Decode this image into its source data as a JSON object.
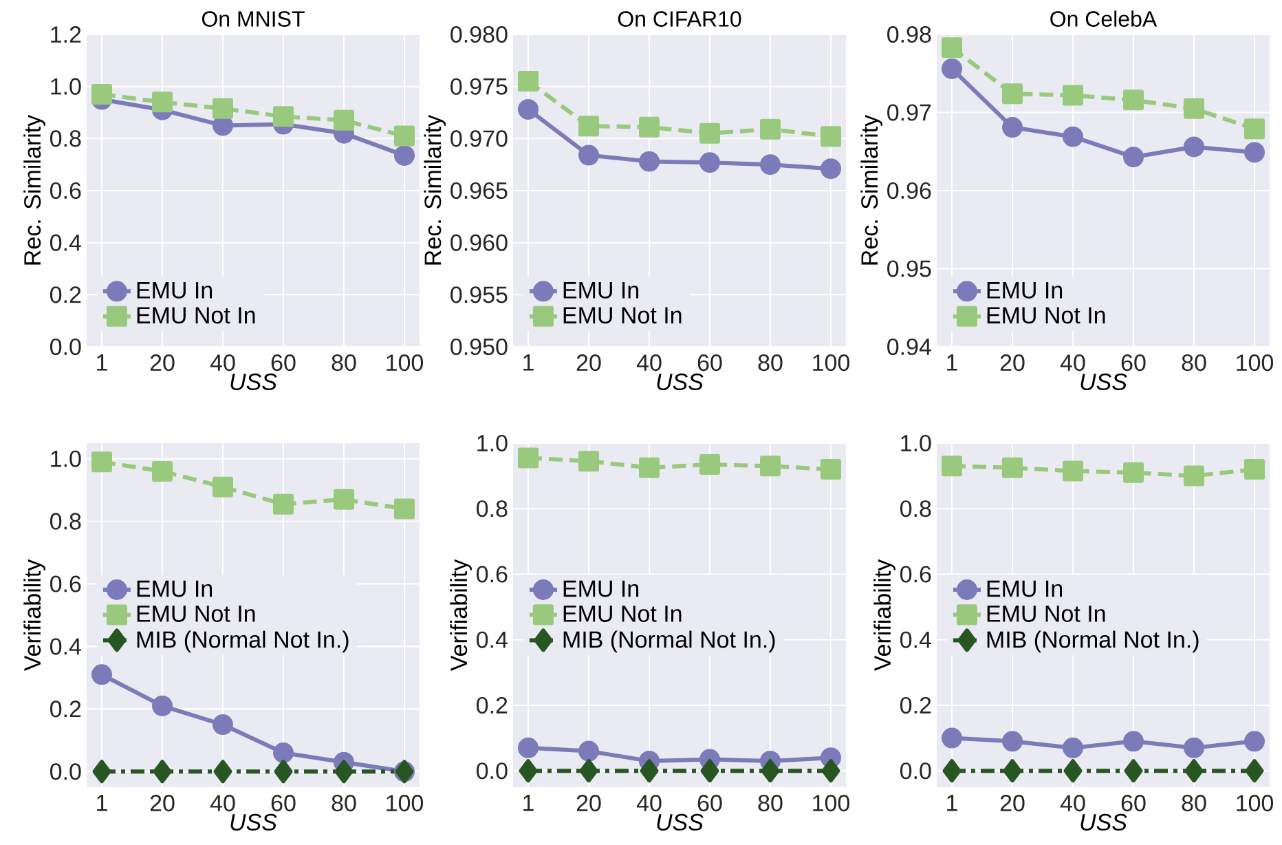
{
  "chart_data": [
    {
      "type": "line",
      "title": "On MNIST",
      "xlabel": "USS",
      "ylabel": "Rec. Similarity",
      "categories": [
        "1",
        "20",
        "40",
        "60",
        "80",
        "100"
      ],
      "ylim": [
        0,
        1.2
      ],
      "yticks": [
        {
          "value": 0,
          "label": "0.0"
        },
        {
          "value": 0.2,
          "label": "0.2"
        },
        {
          "value": 0.4,
          "label": "0.4"
        },
        {
          "value": 0.6,
          "label": "0.6"
        },
        {
          "value": 0.8,
          "label": "0.8"
        },
        {
          "value": 1.0,
          "label": "1.0"
        },
        {
          "value": 1.2,
          "label": "1.2"
        }
      ],
      "grid": true,
      "legend": "bottom left",
      "series": [
        {
          "name": "EMU In",
          "color": "#7b7bb9",
          "marker": "circle",
          "line_style": "solid",
          "values": [
            0.95,
            0.91,
            0.85,
            0.855,
            0.82,
            0.735
          ]
        },
        {
          "name": "EMU Not In",
          "color": "#98c97d",
          "marker": "square",
          "line_style": "dashed",
          "values": [
            0.97,
            0.94,
            0.915,
            0.885,
            0.87,
            0.81
          ]
        }
      ]
    },
    {
      "type": "line",
      "title": "On CIFAR10",
      "xlabel": "USS",
      "ylabel": "Rec. Similarity",
      "categories": [
        "1",
        "20",
        "40",
        "60",
        "80",
        "100"
      ],
      "ylim": [
        0.95,
        0.98
      ],
      "yticks": [
        {
          "value": 0.95,
          "label": "0.950"
        },
        {
          "value": 0.955,
          "label": "0.955"
        },
        {
          "value": 0.96,
          "label": "0.960"
        },
        {
          "value": 0.965,
          "label": "0.965"
        },
        {
          "value": 0.97,
          "label": "0.970"
        },
        {
          "value": 0.975,
          "label": "0.975"
        },
        {
          "value": 0.98,
          "label": "0.980"
        }
      ],
      "grid": true,
      "legend": "bottom left",
      "series": [
        {
          "name": "EMU In",
          "color": "#7b7bb9",
          "marker": "circle",
          "line_style": "solid",
          "values": [
            0.9728,
            0.9684,
            0.9678,
            0.9677,
            0.9675,
            0.9671
          ]
        },
        {
          "name": "EMU Not In",
          "color": "#98c97d",
          "marker": "square",
          "line_style": "dashed",
          "values": [
            0.9755,
            0.9712,
            0.9711,
            0.9705,
            0.9709,
            0.9702
          ]
        }
      ]
    },
    {
      "type": "line",
      "title": "On CelebA",
      "xlabel": "USS",
      "ylabel": "Rec. Similarity",
      "categories": [
        "1",
        "20",
        "40",
        "60",
        "80",
        "100"
      ],
      "ylim": [
        0.94,
        0.98
      ],
      "yticks": [
        0.94,
        0.95,
        0.96,
        0.97,
        0.98
      ],
      "grid": true,
      "legend": "bottom left",
      "series": [
        {
          "name": "EMU In",
          "color": "#7b7bb9",
          "marker": "circle",
          "line_style": "solid",
          "values": [
            0.9756,
            0.9681,
            0.9669,
            0.9643,
            0.9656,
            0.9649
          ]
        },
        {
          "name": "EMU Not In",
          "color": "#98c97d",
          "marker": "square",
          "line_style": "dashed",
          "values": [
            0.9783,
            0.9724,
            0.9722,
            0.9716,
            0.9705,
            0.9679
          ]
        }
      ]
    },
    {
      "type": "line",
      "xlabel": "USS",
      "ylabel": "Verifiability",
      "categories": [
        "1",
        "20",
        "40",
        "60",
        "80",
        "100"
      ],
      "ylim": [
        -0.05,
        1.05
      ],
      "yticks": [
        {
          "value": 0,
          "label": "0.0"
        },
        {
          "value": 0.2,
          "label": "0.2"
        },
        {
          "value": 0.4,
          "label": "0.4"
        },
        {
          "value": 0.6,
          "label": "0.6"
        },
        {
          "value": 0.8,
          "label": "0.8"
        },
        {
          "value": 1.0,
          "label": "1.0"
        }
      ],
      "grid": true,
      "legend": "left",
      "series": [
        {
          "name": "EMU In",
          "color": "#7b7bb9",
          "marker": "circle",
          "line_style": "solid",
          "values": [
            0.31,
            0.21,
            0.15,
            0.06,
            0.03,
            0.0
          ]
        },
        {
          "name": "EMU Not In",
          "color": "#98c97d",
          "marker": "square",
          "line_style": "dashed",
          "values": [
            0.99,
            0.96,
            0.91,
            0.855,
            0.87,
            0.84
          ]
        },
        {
          "name": "MIB (Normal Not In.)",
          "color": "#285623",
          "marker": "diamond",
          "line_style": "dashdot",
          "values": [
            0,
            0,
            0,
            0,
            0,
            0
          ]
        }
      ]
    },
    {
      "type": "line",
      "xlabel": "USS",
      "ylabel": "Verifiability",
      "categories": [
        "1",
        "20",
        "40",
        "60",
        "80",
        "100"
      ],
      "ylim": [
        -0.05,
        1.0
      ],
      "yticks": [
        {
          "value": 0,
          "label": "0.0"
        },
        {
          "value": 0.2,
          "label": "0.2"
        },
        {
          "value": 0.4,
          "label": "0.4"
        },
        {
          "value": 0.6,
          "label": "0.6"
        },
        {
          "value": 0.8,
          "label": "0.8"
        },
        {
          "value": 1.0,
          "label": "1.0"
        }
      ],
      "grid": true,
      "legend": "left",
      "series": [
        {
          "name": "EMU In",
          "color": "#7b7bb9",
          "marker": "circle",
          "line_style": "solid",
          "values": [
            0.07,
            0.06,
            0.03,
            0.035,
            0.03,
            0.04
          ]
        },
        {
          "name": "EMU Not In",
          "color": "#98c97d",
          "marker": "square",
          "line_style": "dashed",
          "values": [
            0.955,
            0.945,
            0.925,
            0.935,
            0.93,
            0.92
          ]
        },
        {
          "name": "MIB (Normal Not In.)",
          "color": "#285623",
          "marker": "diamond",
          "line_style": "dashdot",
          "values": [
            0,
            0,
            0,
            0,
            0,
            0
          ]
        }
      ]
    },
    {
      "type": "line",
      "xlabel": "USS",
      "ylabel": "Verifiability",
      "categories": [
        "1",
        "20",
        "40",
        "60",
        "80",
        "100"
      ],
      "ylim": [
        -0.05,
        1.0
      ],
      "yticks": [
        {
          "value": 0,
          "label": "0.0"
        },
        {
          "value": 0.2,
          "label": "0.2"
        },
        {
          "value": 0.4,
          "label": "0.4"
        },
        {
          "value": 0.6,
          "label": "0.6"
        },
        {
          "value": 0.8,
          "label": "0.8"
        },
        {
          "value": 1.0,
          "label": "1.0"
        }
      ],
      "grid": true,
      "legend": "left",
      "series": [
        {
          "name": "EMU In",
          "color": "#7b7bb9",
          "marker": "circle",
          "line_style": "solid",
          "values": [
            0.1,
            0.09,
            0.07,
            0.09,
            0.07,
            0.09
          ]
        },
        {
          "name": "EMU Not In",
          "color": "#98c97d",
          "marker": "square",
          "line_style": "dashed",
          "values": [
            0.93,
            0.925,
            0.915,
            0.91,
            0.9,
            0.92
          ]
        },
        {
          "name": "MIB (Normal Not In.)",
          "color": "#285623",
          "marker": "diamond",
          "line_style": "dashdot",
          "values": [
            0,
            0,
            0,
            0,
            0,
            0
          ]
        }
      ]
    }
  ]
}
